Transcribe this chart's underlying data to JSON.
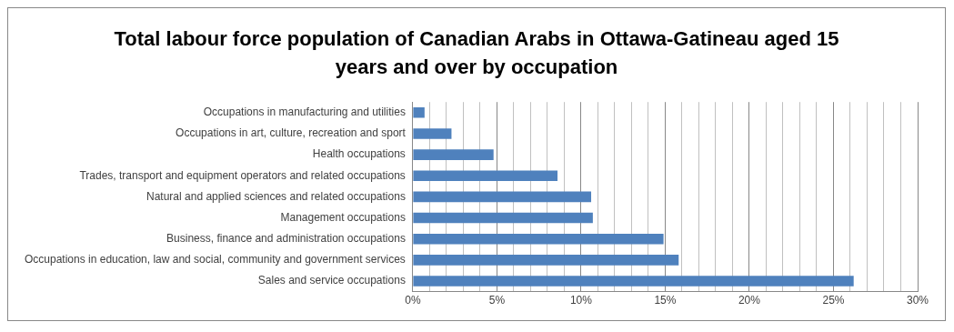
{
  "chart_data": {
    "type": "bar",
    "orientation": "horizontal",
    "title": "Total labour force population of Canadian Arabs in Ottawa-Gatineau aged 15 years and over by occupation",
    "categories": [
      "Occupations in manufacturing and utilities",
      "Occupations in art, culture, recreation and sport",
      "Health occupations",
      "Trades, transport and equipment operators and related occupations",
      "Natural and applied sciences and related occupations",
      "Management occupations",
      "Business, finance and administration occupations",
      "Occupations in education, law and social, community and government services",
      "Sales and service occupations"
    ],
    "values": [
      0.7,
      2.3,
      4.8,
      8.6,
      10.6,
      10.7,
      14.9,
      15.8,
      26.2
    ],
    "color": "#4f81bd",
    "xlim": [
      0,
      30
    ],
    "xticks": [
      {
        "value": 0,
        "label": "0%"
      },
      {
        "value": 1,
        "label": null
      },
      {
        "value": 2,
        "label": null
      },
      {
        "value": 3,
        "label": null
      },
      {
        "value": 4,
        "label": null
      },
      {
        "value": 5,
        "label": "5%"
      },
      {
        "value": 6,
        "label": null
      },
      {
        "value": 7,
        "label": null
      },
      {
        "value": 8,
        "label": null
      },
      {
        "value": 9,
        "label": null
      },
      {
        "value": 10,
        "label": "10%"
      },
      {
        "value": 11,
        "label": null
      },
      {
        "value": 12,
        "label": null
      },
      {
        "value": 13,
        "label": null
      },
      {
        "value": 14,
        "label": null
      },
      {
        "value": 15,
        "label": "15%"
      },
      {
        "value": 16,
        "label": null
      },
      {
        "value": 17,
        "label": null
      },
      {
        "value": 18,
        "label": null
      },
      {
        "value": 19,
        "label": null
      },
      {
        "value": 20,
        "label": "20%"
      },
      {
        "value": 21,
        "label": null
      },
      {
        "value": 22,
        "label": null
      },
      {
        "value": 23,
        "label": null
      },
      {
        "value": 24,
        "label": null
      },
      {
        "value": 25,
        "label": "25%"
      },
      {
        "value": 26,
        "label": null
      },
      {
        "value": 27,
        "label": null
      },
      {
        "value": 28,
        "label": null
      },
      {
        "value": 29,
        "label": null
      },
      {
        "value": 30,
        "label": "30%"
      }
    ],
    "grid": "x",
    "legend": false
  }
}
